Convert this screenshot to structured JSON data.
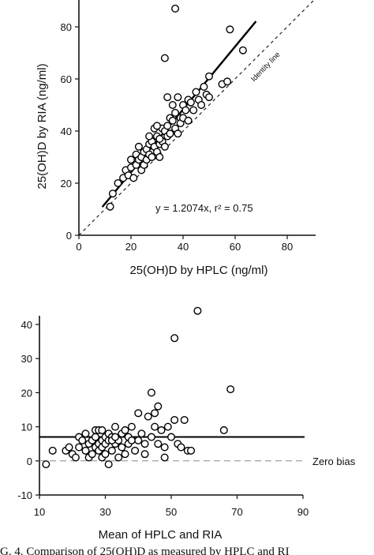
{
  "chart_data": [
    {
      "type": "scatter",
      "xlabel": "25(OH)D by HPLC (ng/ml)",
      "ylabel": "25(OH)D by RIA (ng/ml)",
      "xlim": [
        0,
        90
      ],
      "ylim": [
        0,
        90
      ],
      "xticks": [
        0,
        20,
        40,
        60,
        80
      ],
      "yticks": [
        0,
        20,
        40,
        60,
        80
      ],
      "regression": {
        "slope": 1.2074,
        "x_range": [
          9,
          68
        ],
        "label": "y = 1.2074x, r² = 0.75"
      },
      "identity_line": {
        "label": "Identity line",
        "style": "dashed"
      },
      "points": [
        [
          12,
          11
        ],
        [
          13,
          16
        ],
        [
          15,
          20
        ],
        [
          17,
          22
        ],
        [
          18,
          25
        ],
        [
          19,
          23
        ],
        [
          20,
          26
        ],
        [
          20,
          29
        ],
        [
          21,
          22
        ],
        [
          22,
          27
        ],
        [
          22,
          31
        ],
        [
          23,
          29
        ],
        [
          23,
          34
        ],
        [
          24,
          25
        ],
        [
          24,
          30
        ],
        [
          25,
          32
        ],
        [
          25,
          27
        ],
        [
          26,
          33
        ],
        [
          26,
          29
        ],
        [
          27,
          35
        ],
        [
          27,
          31
        ],
        [
          28,
          30
        ],
        [
          28,
          36
        ],
        [
          29,
          34
        ],
        [
          29,
          41
        ],
        [
          30,
          32
        ],
        [
          30,
          38
        ],
        [
          31,
          35
        ],
        [
          31,
          30
        ],
        [
          32,
          41
        ],
        [
          32,
          36
        ],
        [
          33,
          40
        ],
        [
          33,
          34
        ],
        [
          34,
          42
        ],
        [
          34,
          38
        ],
        [
          35,
          39
        ],
        [
          35,
          45
        ],
        [
          36,
          44
        ],
        [
          36,
          50
        ],
        [
          37,
          47
        ],
        [
          37,
          41
        ],
        [
          38,
          53
        ],
        [
          38,
          39
        ],
        [
          39,
          45
        ],
        [
          39,
          43
        ],
        [
          40,
          50
        ],
        [
          40,
          45
        ],
        [
          41,
          48
        ],
        [
          42,
          44
        ],
        [
          42,
          52
        ],
        [
          43,
          51
        ],
        [
          44,
          48
        ],
        [
          45,
          55
        ],
        [
          46,
          52
        ],
        [
          47,
          50
        ],
        [
          48,
          57
        ],
        [
          49,
          54
        ],
        [
          50,
          61
        ],
        [
          50,
          53
        ],
        [
          55,
          58
        ],
        [
          57,
          59
        ],
        [
          63,
          71
        ],
        [
          58,
          79
        ],
        [
          37,
          87
        ],
        [
          33,
          68
        ],
        [
          34,
          53
        ],
        [
          30,
          42
        ],
        [
          27,
          38
        ],
        [
          31,
          37
        ]
      ]
    },
    {
      "type": "scatter",
      "xlabel": "Mean of HPLC and RIA",
      "ylabel": "",
      "xlim": [
        10,
        90
      ],
      "ylim": [
        -10,
        45
      ],
      "xticks": [
        10,
        30,
        50,
        70,
        90
      ],
      "yticks": [
        -10,
        0,
        10,
        20,
        30,
        40
      ],
      "mean_bias": 7,
      "zero_bias_label": "Zero bias",
      "points": [
        [
          12,
          -1
        ],
        [
          14,
          3
        ],
        [
          18,
          3
        ],
        [
          19,
          4
        ],
        [
          20,
          2
        ],
        [
          21,
          1
        ],
        [
          22,
          7
        ],
        [
          22,
          4
        ],
        [
          23,
          6
        ],
        [
          24,
          3
        ],
        [
          24,
          8
        ],
        [
          25,
          5
        ],
        [
          25,
          1
        ],
        [
          26,
          2
        ],
        [
          26,
          6
        ],
        [
          27,
          7
        ],
        [
          27,
          4
        ],
        [
          27,
          9
        ],
        [
          28,
          3
        ],
        [
          28,
          5
        ],
        [
          28,
          9
        ],
        [
          29,
          1
        ],
        [
          29,
          6
        ],
        [
          29,
          4
        ],
        [
          30,
          7
        ],
        [
          30,
          2
        ],
        [
          30,
          5
        ],
        [
          31,
          6
        ],
        [
          31,
          8
        ],
        [
          31,
          -1
        ],
        [
          32,
          3
        ],
        [
          32,
          7
        ],
        [
          33,
          5
        ],
        [
          33,
          10
        ],
        [
          34,
          6
        ],
        [
          34,
          1
        ],
        [
          35,
          4
        ],
        [
          35,
          8
        ],
        [
          36,
          9
        ],
        [
          36,
          2
        ],
        [
          37,
          7
        ],
        [
          37,
          5
        ],
        [
          38,
          6
        ],
        [
          38,
          10
        ],
        [
          39,
          3
        ],
        [
          40,
          14
        ],
        [
          40,
          6
        ],
        [
          41,
          8
        ],
        [
          42,
          2
        ],
        [
          42,
          5
        ],
        [
          43,
          13
        ],
        [
          44,
          20
        ],
        [
          44,
          7
        ],
        [
          45,
          14
        ],
        [
          45,
          10
        ],
        [
          46,
          16
        ],
        [
          46,
          5
        ],
        [
          47,
          9
        ],
        [
          48,
          4
        ],
        [
          48,
          1
        ],
        [
          49,
          10
        ],
        [
          50,
          7
        ],
        [
          51,
          12
        ],
        [
          51,
          36
        ],
        [
          52,
          5
        ],
        [
          53,
          4
        ],
        [
          54,
          12
        ],
        [
          55,
          3
        ],
        [
          56,
          3
        ],
        [
          58,
          44
        ],
        [
          66,
          9
        ],
        [
          68,
          21
        ],
        [
          32,
          6
        ],
        [
          29,
          9
        ],
        [
          33,
          7
        ]
      ]
    }
  ],
  "caption": "G. 4. Comparison of 25(OH)D as measured by HPLC and RI"
}
